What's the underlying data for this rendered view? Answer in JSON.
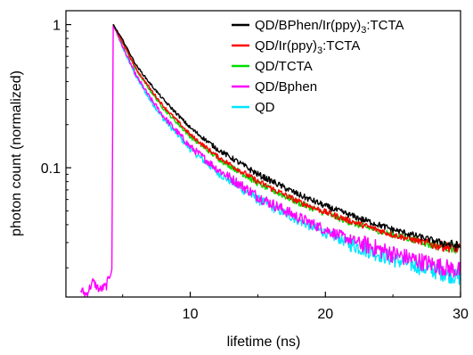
{
  "chart_data": {
    "type": "line",
    "title": "",
    "xlabel": "lifetime (ns)",
    "ylabel": "photon count (normalized)",
    "xlim": [
      0.8,
      30
    ],
    "ylim": [
      0.0125,
      1.25
    ],
    "yscale": "log",
    "grid": false,
    "legend_position": "top-right",
    "x_ticks": [
      10,
      20,
      30
    ],
    "x_tick_labels": [
      "10",
      "20",
      "30"
    ],
    "y_ticks": [
      0.1,
      1
    ],
    "y_tick_labels": [
      "0.1",
      "1"
    ],
    "legend_items": [
      {
        "text_main": "QD/BPhen/Ir(ppy)",
        "sub": "3",
        "text_tail": ":TCTA"
      },
      {
        "text_main": "QD/Ir(ppy)",
        "sub": "3",
        "text_tail": ":TCTA"
      },
      {
        "text_main": "QD/TCTA",
        "sub": "",
        "text_tail": ""
      },
      {
        "text_main": "QD/Bphen",
        "sub": "",
        "text_tail": ""
      },
      {
        "text_main": "QD",
        "sub": "",
        "text_tail": ""
      }
    ],
    "series": [
      {
        "color": "#000000",
        "noise": 0.05,
        "x": [
          4.3,
          5.0,
          6.0,
          7.0,
          8.0,
          10.0,
          12.0,
          15.0,
          18.0,
          20.0,
          22.0,
          25.0,
          28.0,
          30.0
        ],
        "values": [
          1.0,
          0.78,
          0.52,
          0.39,
          0.3,
          0.19,
          0.135,
          0.09,
          0.065,
          0.054,
          0.046,
          0.037,
          0.031,
          0.028
        ]
      },
      {
        "color": "#ff0000",
        "noise": 0.05,
        "x": [
          4.3,
          5.0,
          6.0,
          7.0,
          8.0,
          10.0,
          12.0,
          15.0,
          18.0,
          20.0,
          22.0,
          25.0,
          28.0,
          30.0
        ],
        "values": [
          1.0,
          0.75,
          0.49,
          0.36,
          0.27,
          0.17,
          0.12,
          0.08,
          0.058,
          0.049,
          0.042,
          0.034,
          0.029,
          0.027
        ]
      },
      {
        "color": "#00dd00",
        "noise": 0.05,
        "x": [
          4.3,
          5.0,
          6.0,
          7.0,
          8.0,
          10.0,
          12.0,
          15.0,
          18.0,
          20.0,
          22.0,
          25.0,
          28.0,
          30.0
        ],
        "values": [
          1.0,
          0.74,
          0.48,
          0.35,
          0.26,
          0.165,
          0.117,
          0.078,
          0.057,
          0.048,
          0.041,
          0.034,
          0.029,
          0.027
        ]
      },
      {
        "color": "#ff00ff",
        "noise": 0.09,
        "x": [
          1.9,
          2.3,
          2.8,
          3.3,
          3.8,
          4.2,
          4.3,
          5.0,
          6.0,
          7.0,
          8.0,
          10.0,
          12.0,
          15.0,
          18.0,
          20.0,
          22.0,
          25.0,
          28.0,
          30.0
        ],
        "values": [
          0.014,
          0.013,
          0.016,
          0.014,
          0.015,
          0.02,
          1.0,
          0.7,
          0.44,
          0.31,
          0.23,
          0.14,
          0.098,
          0.063,
          0.045,
          0.037,
          0.031,
          0.025,
          0.021,
          0.019
        ]
      },
      {
        "color": "#00e5ff",
        "noise": 0.08,
        "x": [
          4.3,
          5.0,
          6.0,
          7.0,
          8.0,
          10.0,
          12.0,
          15.0,
          18.0,
          20.0,
          22.0,
          25.0,
          28.0,
          30.0
        ],
        "values": [
          1.0,
          0.69,
          0.43,
          0.3,
          0.22,
          0.135,
          0.093,
          0.06,
          0.043,
          0.035,
          0.029,
          0.023,
          0.019,
          0.017
        ]
      }
    ]
  }
}
